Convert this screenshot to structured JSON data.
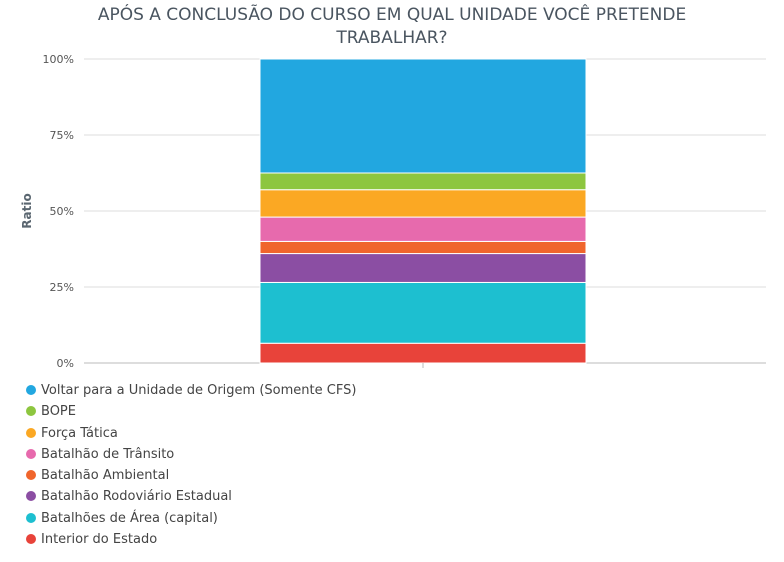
{
  "chart_data": {
    "type": "bar",
    "stacked": true,
    "title_lines": [
      "APÓS A CONCLUSÃO DO CURSO EM QUAL UNIDADE VOCÊ PRETENDE",
      "TRABALHAR?"
    ],
    "ylabel": "Ratio",
    "ylim": [
      0,
      100
    ],
    "yticks": [
      "0%",
      "25%",
      "50%",
      "75%",
      "100%"
    ],
    "ytick_values": [
      0,
      25,
      50,
      75,
      100
    ],
    "grid": true,
    "legend_position": "bottom-left",
    "series": [
      {
        "name": "Interior do Estado",
        "value": 6.5,
        "color": "#e8433a"
      },
      {
        "name": "Batalhões de Área (capital)",
        "value": 20,
        "color": "#1dbfd0"
      },
      {
        "name": "Batalhão Rodoviário Estadual",
        "value": 9.5,
        "color": "#8b4ea3"
      },
      {
        "name": "Batalhão Ambiental",
        "value": 4,
        "color": "#f0652c"
      },
      {
        "name": "Batalhão de Trânsito",
        "value": 8,
        "color": "#e76aad"
      },
      {
        "name": "Força Tática",
        "value": 9,
        "color": "#fba823"
      },
      {
        "name": "BOPE",
        "value": 5.5,
        "color": "#8dc63f"
      },
      {
        "name": "Voltar para a Unidade de Origem (Somente CFS)",
        "value": 37.5,
        "color": "#22a7e0"
      }
    ]
  }
}
